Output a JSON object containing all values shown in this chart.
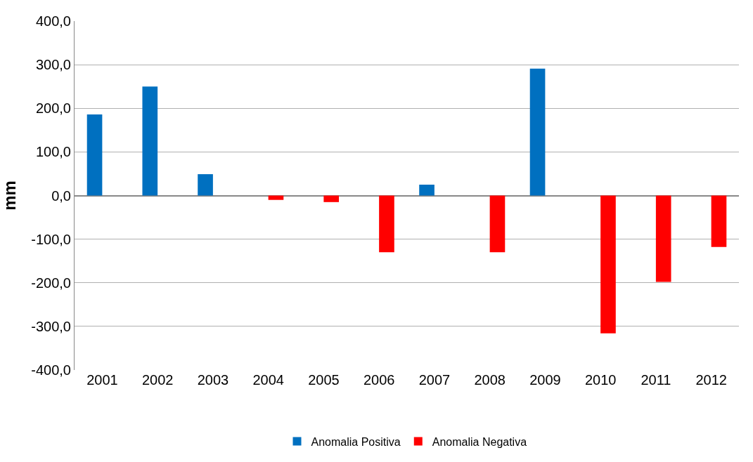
{
  "chart_data": {
    "type": "bar",
    "ylabel": "mm",
    "categories": [
      "2001",
      "2002",
      "2003",
      "2004",
      "2005",
      "2006",
      "2007",
      "2008",
      "2009",
      "2010",
      "2011",
      "2012"
    ],
    "series": [
      {
        "name": "Anomalia Positiva",
        "color": "#0070c0",
        "values": [
          186,
          250,
          49,
          null,
          null,
          null,
          25,
          null,
          291,
          null,
          null,
          null
        ]
      },
      {
        "name": "Anomalia Negativa",
        "color": "#ff0000",
        "values": [
          null,
          null,
          null,
          -10,
          -15,
          -130,
          null,
          -130,
          null,
          -316,
          -198,
          -118
        ]
      }
    ],
    "ylim": [
      -400,
      400
    ],
    "yticks": [
      {
        "value": -400,
        "label": "-400,0"
      },
      {
        "value": -300,
        "label": "-300,0"
      },
      {
        "value": -200,
        "label": "-200,0"
      },
      {
        "value": -100,
        "label": "-100,0"
      },
      {
        "value": 0,
        "label": "0,0"
      },
      {
        "value": 100,
        "label": "100,0"
      },
      {
        "value": 200,
        "label": "200,0"
      },
      {
        "value": 300,
        "label": "300,0"
      },
      {
        "value": 400,
        "label": "400,0"
      }
    ],
    "grid": "y",
    "legend": "bottom"
  }
}
